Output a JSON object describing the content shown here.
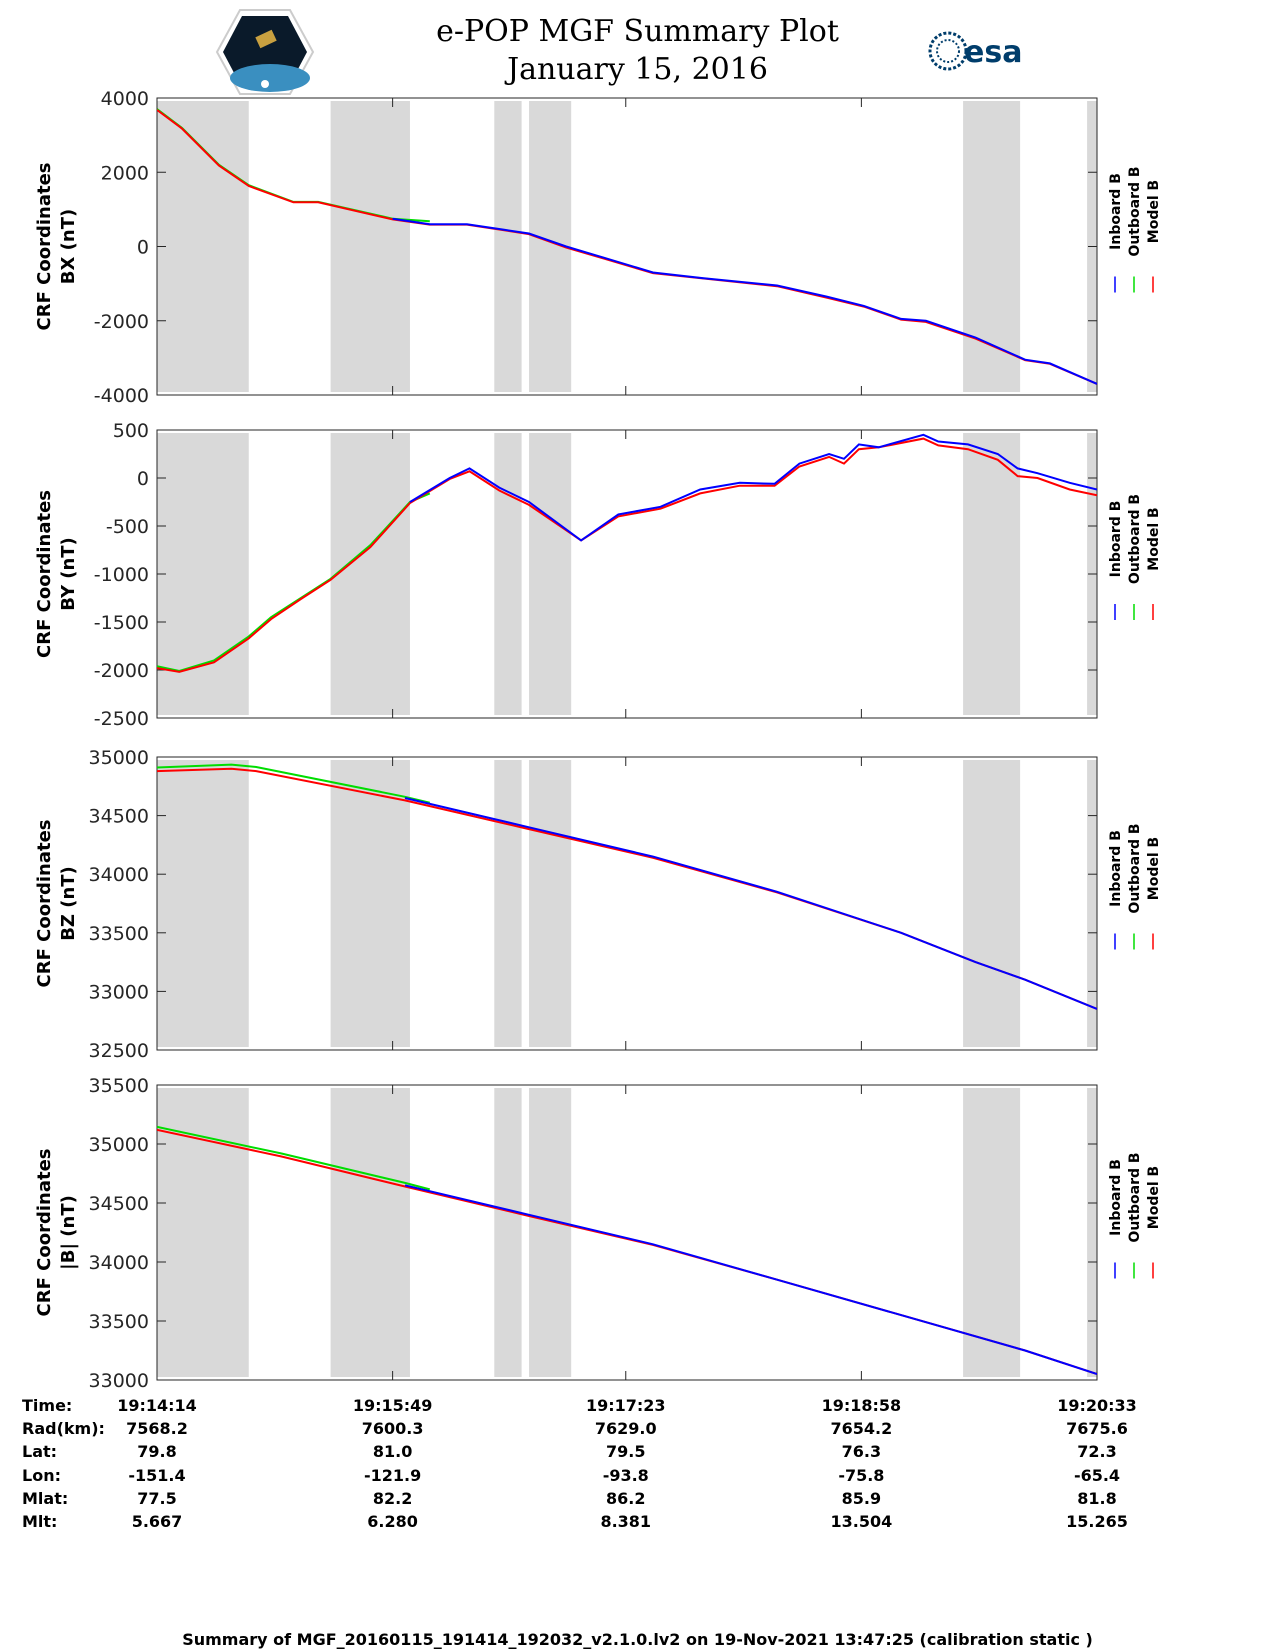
{
  "header": {
    "title_line1": "e-POP MGF Summary Plot",
    "title_line2": "January 15, 2016",
    "left_logo": "CASSIOPE",
    "right_logo": "esa"
  },
  "colors": {
    "inboard": "#0000ff",
    "outboard": "#00dd00",
    "model": "#ff0000",
    "gap": "#d9d9d9"
  },
  "legend": [
    "Inboard B",
    "Outboard B",
    "Model B"
  ],
  "chart_data": {
    "type": "line",
    "x_units": "seconds since 19:14:14",
    "xlim": [
      0,
      379
    ],
    "x_ticks": [
      0,
      95,
      189,
      284,
      379
    ],
    "shaded_intervals": [
      [
        0,
        37
      ],
      [
        70,
        102
      ],
      [
        136,
        147
      ],
      [
        150,
        167
      ],
      [
        325,
        348
      ],
      [
        375,
        379
      ]
    ],
    "panels": [
      {
        "ylabel1": "CRF Coordinates",
        "ylabel2": "BX (nT)",
        "ylim": [
          -4000,
          4000
        ],
        "yticks": [
          "4000",
          "2000",
          "0",
          "-2000",
          "-4000"
        ],
        "ytick_values": [
          4000,
          2000,
          0,
          -2000,
          -4000
        ],
        "series": [
          {
            "name": "Outboard B",
            "x": [
              0,
              10,
              25,
              37,
              55,
              65,
              95,
              110
            ],
            "y": [
              3700,
              3200,
              2200,
              1650,
              1200,
              1200,
              750,
              680
            ]
          },
          {
            "name": "Model B",
            "x": [
              0,
              10,
              25,
              37,
              55,
              65,
              95,
              110,
              125,
              140,
              150,
              165,
              180,
              200,
              220,
              250,
              270,
              285,
              300,
              310,
              330,
              350,
              360,
              379
            ],
            "y": [
              3680,
              3180,
              2180,
              1630,
              1190,
              1190,
              730,
              590,
              590,
              440,
              330,
              -30,
              -320,
              -720,
              -860,
              -1070,
              -1380,
              -1620,
              -1970,
              -2030,
              -2480,
              -3060,
              -3160,
              -3700
            ]
          },
          {
            "name": "Inboard B",
            "x": [
              95,
              110,
              125,
              140,
              150,
              165,
              180,
              200,
              220,
              250,
              270,
              285,
              300,
              310,
              330,
              350,
              360,
              379
            ],
            "y": [
              750,
              600,
              600,
              450,
              350,
              0,
              -300,
              -700,
              -850,
              -1050,
              -1350,
              -1600,
              -1950,
              -2000,
              -2450,
              -3050,
              -3150,
              -3700
            ]
          }
        ]
      },
      {
        "ylabel1": "CRF Coordinates",
        "ylabel2": "BY (nT)",
        "ylim": [
          -2500,
          500
        ],
        "yticks": [
          "500",
          "0",
          "-500",
          "-1000",
          "-1500",
          "-2000",
          "-2500"
        ],
        "ytick_values": [
          500,
          0,
          -500,
          -1000,
          -1500,
          -2000,
          -2500
        ],
        "series": [
          {
            "name": "Outboard B",
            "x": [
              0,
              9,
              23,
              37,
              46,
              58,
              70,
              86,
              102,
              110
            ],
            "y": [
              -1960,
              -2010,
              -1900,
              -1650,
              -1450,
              -1250,
              -1050,
              -700,
              -250,
              -160
            ]
          },
          {
            "name": "Model B",
            "x": [
              0,
              9,
              23,
              37,
              46,
              58,
              70,
              86,
              102,
              118,
              126,
              138,
              150,
              171,
              186,
              203,
              219,
              235,
              249,
              259,
              271,
              277,
              283,
              291,
              309,
              315,
              327,
              339,
              347,
              355,
              368,
              379
            ],
            "y": [
              -1980,
              -2020,
              -1920,
              -1670,
              -1470,
              -1260,
              -1060,
              -720,
              -260,
              -10,
              70,
              -130,
              -280,
              -650,
              -400,
              -320,
              -160,
              -80,
              -80,
              120,
              220,
              150,
              300,
              320,
              410,
              340,
              300,
              190,
              20,
              0,
              -120,
              -180
            ]
          },
          {
            "name": "Inboard B",
            "x": [
              102,
              118,
              126,
              138,
              150,
              171,
              186,
              203,
              219,
              235,
              249,
              259,
              271,
              277,
              283,
              291,
              309,
              315,
              327,
              339,
              347,
              355,
              368,
              379
            ],
            "y": [
              -250,
              0,
              100,
              -100,
              -250,
              -650,
              -380,
              -300,
              -120,
              -50,
              -60,
              150,
              250,
              200,
              350,
              320,
              450,
              380,
              350,
              250,
              100,
              50,
              -50,
              -120
            ]
          }
        ]
      },
      {
        "ylabel1": "CRF Coordinates",
        "ylabel2": "BZ (nT)",
        "ylim": [
          32500,
          35000
        ],
        "yticks": [
          "35000",
          "34500",
          "34000",
          "33500",
          "33000",
          "32500"
        ],
        "ytick_values": [
          35000,
          34500,
          34000,
          33500,
          33000,
          32500
        ],
        "series": [
          {
            "name": "Outboard B",
            "x": [
              0,
              30,
              40,
              100,
              110
            ],
            "y": [
              34910,
              34935,
              34915,
              34660,
              34610
            ]
          },
          {
            "name": "Model B",
            "x": [
              0,
              30,
              40,
              100,
              150,
              200,
              250,
              300,
              330,
              350,
              379
            ],
            "y": [
              34880,
              34900,
              34880,
              34630,
              34385,
              34140,
              33845,
              33500,
              33250,
              33100,
              32850
            ]
          },
          {
            "name": "Inboard B",
            "x": [
              100,
              150,
              200,
              250,
              300,
              330,
              350,
              379
            ],
            "y": [
              34650,
              34400,
              34150,
              33850,
              33500,
              33250,
              33100,
              32850
            ]
          }
        ]
      },
      {
        "ylabel1": "CRF Coordinates",
        "ylabel2": "|B| (nT)",
        "ylim": [
          33000,
          35500
        ],
        "yticks": [
          "35500",
          "35000",
          "34500",
          "34000",
          "33500",
          "33000"
        ],
        "ytick_values": [
          35500,
          35000,
          34500,
          34000,
          33500,
          33000
        ],
        "series": [
          {
            "name": "Outboard B",
            "x": [
              0,
              50,
              100,
              110
            ],
            "y": [
              35145,
              34920,
              34670,
              34615
            ]
          },
          {
            "name": "Model B",
            "x": [
              0,
              50,
              100,
              150,
              200,
              250,
              300,
              350,
              379
            ],
            "y": [
              35120,
              34895,
              34640,
              34390,
              34145,
              33850,
              33550,
              33250,
              33050
            ]
          },
          {
            "name": "Inboard B",
            "x": [
              100,
              150,
              200,
              250,
              300,
              350,
              379
            ],
            "y": [
              34650,
              34400,
              34150,
              33850,
              33550,
              33250,
              33050
            ]
          }
        ]
      }
    ]
  },
  "info_table": {
    "labels": [
      "Time:",
      "Rad(km):",
      "Lat:",
      "Lon:",
      "Mlat:",
      "Mlt:"
    ],
    "columns": [
      [
        "19:14:14",
        "7568.2",
        "79.8",
        "-151.4",
        "77.5",
        "5.667"
      ],
      [
        "19:15:49",
        "7600.3",
        "81.0",
        "-121.9",
        "82.2",
        "6.280"
      ],
      [
        "19:17:23",
        "7629.0",
        "79.5",
        "-93.8",
        "86.2",
        "8.381"
      ],
      [
        "19:18:58",
        "7654.2",
        "76.3",
        "-75.8",
        "85.9",
        "13.504"
      ],
      [
        "19:20:33",
        "7675.6",
        "72.3",
        "-65.4",
        "81.8",
        "15.265"
      ]
    ]
  },
  "footer": "Summary of MGF_20160115_191414_192032_v2.1.0.lv2 on 19-Nov-2021 13:47:25 (calibration static )"
}
